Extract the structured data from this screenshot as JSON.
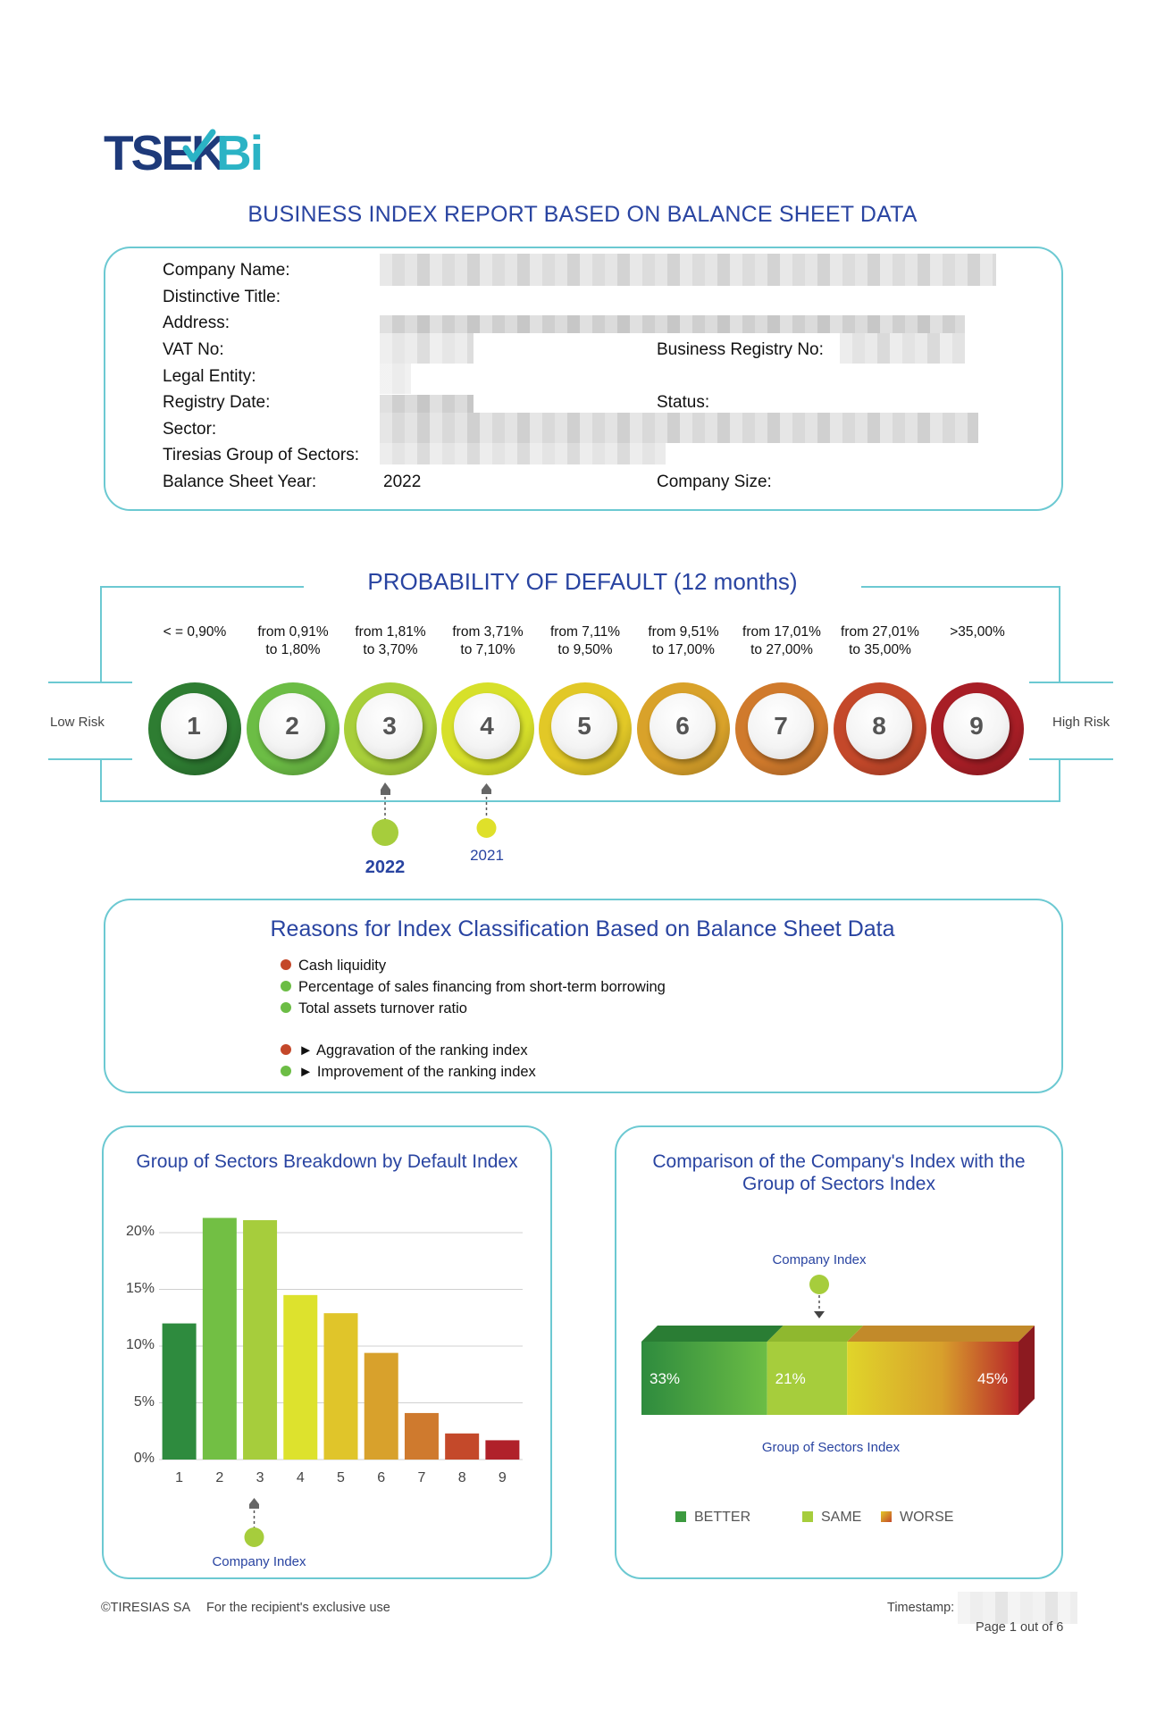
{
  "logo": {
    "text_dark": "TSEK",
    "text_light": "Bi"
  },
  "report_title": "BUSINESS INDEX REPORT BASED ON BALANCE SHEET DATA",
  "company_info": {
    "company_name_label": "Company Name:",
    "distinctive_title_label": "Distinctive Title:",
    "address_label": "Address:",
    "vat_label": "VAT No:",
    "business_registry_label": "Business Registry No:",
    "legal_entity_label": "Legal Entity:",
    "registry_date_label": "Registry Date:",
    "status_label": "Status:",
    "sector_label": "Sector:",
    "group_sectors_label": "Tiresias Group of Sectors:",
    "balance_year_label": "Balance Sheet Year:",
    "balance_year_value": "2022",
    "company_size_label": "Company Size:"
  },
  "pd": {
    "title": "PROBABILITY OF DEFAULT (12 months)",
    "low_risk": "Low Risk",
    "high_risk": "High Risk",
    "classes": [
      {
        "num": "1",
        "range1": "< = 0,90%",
        "range2": "",
        "color": "#2e7d32"
      },
      {
        "num": "2",
        "range1": "from 0,91%",
        "range2": "to 1,80%",
        "color": "#6cbd45"
      },
      {
        "num": "3",
        "range1": "from 1,81%",
        "range2": "to 3,70%",
        "color": "#a8cf3a"
      },
      {
        "num": "4",
        "range1": "from 3,71%",
        "range2": "to 7,10%",
        "color": "#d7e02a"
      },
      {
        "num": "5",
        "range1": "from 7,11%",
        "range2": "to 9,50%",
        "color": "#e2c827"
      },
      {
        "num": "6",
        "range1": "from 9,51%",
        "range2": "to 17,00%",
        "color": "#d9a22a"
      },
      {
        "num": "7",
        "range1": "from 17,01%",
        "range2": "to 27,00%",
        "color": "#d07a2c"
      },
      {
        "num": "8",
        "range1": "from 27,01%",
        "range2": "to 35,00%",
        "color": "#c4482a"
      },
      {
        "num": "9",
        "range1": ">35,00%",
        "range2": "",
        "color": "#a81e26"
      }
    ],
    "marker_2022": "2022",
    "marker_2021": "2021"
  },
  "reasons": {
    "title": "Reasons for Index Classification Based on Balance Sheet Data",
    "items": [
      {
        "text": "Cash liquidity",
        "color": "#c4482a"
      },
      {
        "text": "Percentage of sales financing from short-term borrowing",
        "color": "#6cbd45"
      },
      {
        "text": "Total assets turnover ratio",
        "color": "#6cbd45"
      }
    ],
    "legend": [
      {
        "text": "► Aggravation of the ranking index",
        "color": "#c4482a"
      },
      {
        "text": "► Improvement of the ranking index",
        "color": "#6cbd45"
      }
    ]
  },
  "chart_data": [
    {
      "type": "bar",
      "title": "Group of Sectors Breakdown by Default Index",
      "categories": [
        "1",
        "2",
        "3",
        "4",
        "5",
        "6",
        "7",
        "8",
        "9"
      ],
      "values": [
        12,
        21.3,
        21.1,
        14.5,
        12.9,
        9.4,
        4.1,
        2.3,
        1.7
      ],
      "colors": [
        "#2e8b3e",
        "#72bf44",
        "#a6cd3c",
        "#dde22d",
        "#e0c52a",
        "#d8a12c",
        "#cf7a2e",
        "#c4492a",
        "#b0212a"
      ],
      "yticks": [
        "0%",
        "5%",
        "10%",
        "15%",
        "20%"
      ],
      "ylim": [
        0,
        20
      ],
      "grid": true,
      "marker_label": "Company Index",
      "marker_category": "3"
    },
    {
      "type": "bar",
      "title": "Comparison of the Company's Index with the Group of Sectors Index",
      "categories": [
        "BETTER",
        "SAME",
        "WORSE"
      ],
      "values": [
        33,
        21,
        45
      ],
      "value_labels": [
        "33%",
        "21%",
        "45%"
      ],
      "colors": [
        "#3c9a3f",
        "#a6cd3c",
        "#d06a2a"
      ],
      "top_label": "Company Index",
      "bottom_label": "Group of Sectors Index"
    }
  ],
  "footer": {
    "copyright": "©TIRESIAS SA",
    "usage": "For the recipient's exclusive use",
    "timestamp_label": "Timestamp:",
    "page": "Page 1 out of 6"
  }
}
